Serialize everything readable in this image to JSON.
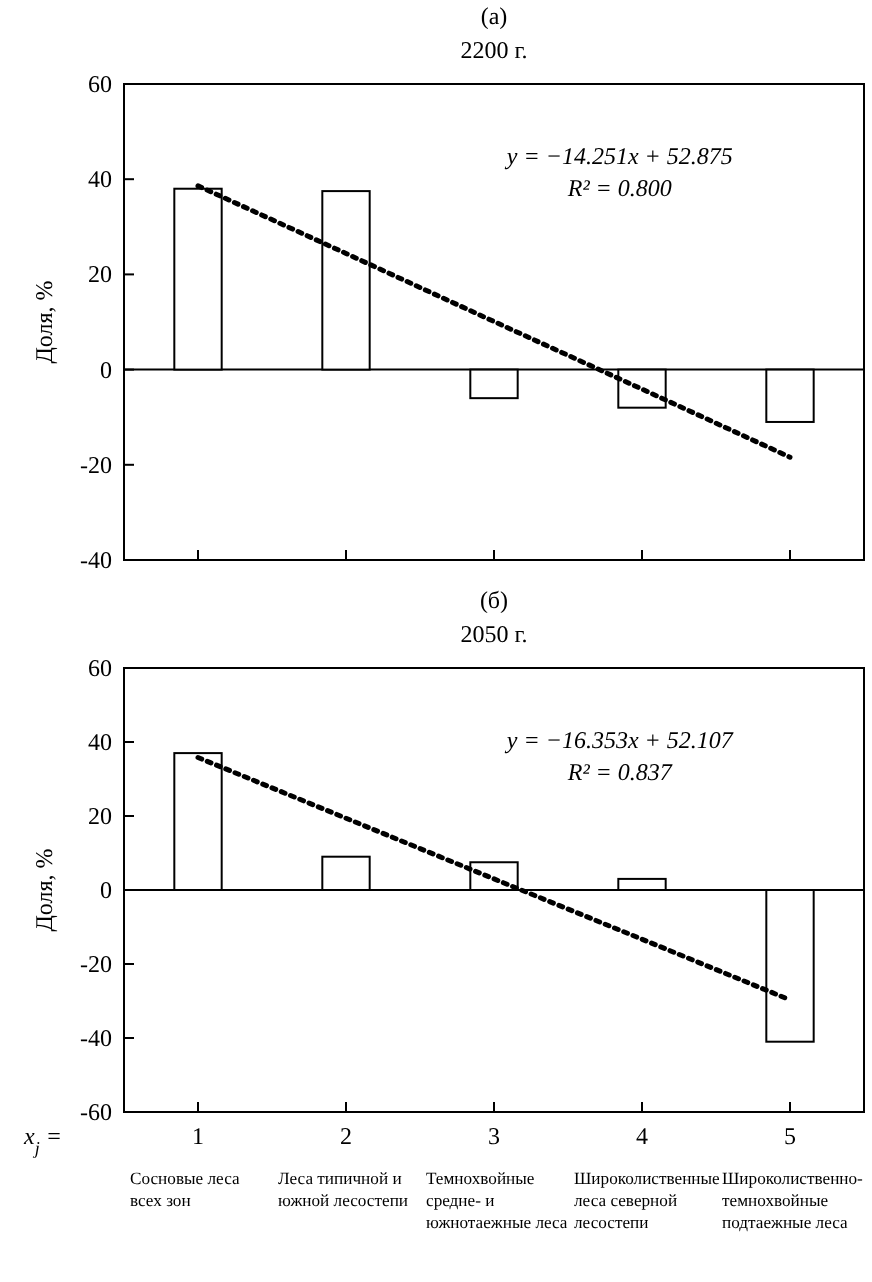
{
  "chart_data": [
    {
      "type": "bar",
      "title": "(а)",
      "subtitle": "2200 г.",
      "ylabel": "Доля, %",
      "x": [
        1,
        2,
        3,
        4,
        5
      ],
      "xlim": [
        0.5,
        5.5
      ],
      "xticks": [
        1,
        2,
        3,
        4,
        5
      ],
      "ylim": [
        -40,
        60
      ],
      "yticks": [
        -40,
        -20,
        0,
        20,
        40,
        60
      ],
      "tick_labels": "y",
      "series": [
        {
          "color": "#ffffff",
          "values": [
            38,
            37.5,
            -6,
            -8,
            -11
          ]
        },
        {
          "type": "line",
          "color": "#000000",
          "values": [
            38.6,
            24.4,
            10.1,
            -4.1,
            -18.4
          ],
          "line_style": "dotted",
          "marker": "none"
        }
      ],
      "ref_lines": [
        {
          "axis": "y",
          "value": 0,
          "color": "#000000"
        }
      ],
      "annotations": [
        "y = −14.251x + 52.875",
        "R² = 0.800"
      ]
    },
    {
      "type": "bar",
      "title": "(б)",
      "subtitle": "2050 г.",
      "ylabel": "Доля, %",
      "xlabel": "x$_{j}$ =",
      "x": [
        1,
        2,
        3,
        4,
        5
      ],
      "xlim": [
        0.5,
        5.5
      ],
      "xticks": [
        1,
        2,
        3,
        4,
        5
      ],
      "ylim": [
        -60,
        60
      ],
      "yticks": [
        -60,
        -40,
        -20,
        0,
        20,
        40,
        60
      ],
      "series": [
        {
          "color": "#ffffff",
          "values": [
            37,
            9,
            7.5,
            3,
            -41
          ]
        },
        {
          "type": "line",
          "color": "#000000",
          "values": [
            35.8,
            19.4,
            3.0,
            -13.3,
            -29.7
          ],
          "line_style": "dotted",
          "marker": "none"
        }
      ],
      "ref_lines": [
        {
          "axis": "y",
          "value": 0,
          "color": "#000000"
        }
      ],
      "annotations": [
        "y = −16.353x + 52.107",
        "R² = 0.837",
        "Сосновые леса всех зон",
        "Леса типичной и южной лесостепи",
        "Темнохвойные средне- и южнотаежные леса",
        "Широколиственные леса северной лесостепи",
        "Широколиственно-темнохвойные подтаежные леса"
      ]
    }
  ]
}
